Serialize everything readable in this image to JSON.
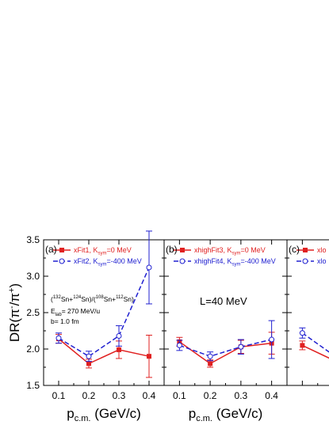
{
  "colors": {
    "red": "#e02020",
    "blue": "#2020d0",
    "axis": "#000000"
  },
  "ylabel_parts": {
    "main": "DR(π",
    "sup1": "-",
    "mid": "/π",
    "sup2": "+",
    "end": ")"
  },
  "xlabel_parts": {
    "p": "p",
    "sub": "c.m.",
    "rest": " (GeV/c)"
  },
  "chart_data": [
    {
      "type": "line",
      "panel_label": "(a)",
      "x": [
        0.1,
        0.2,
        0.3,
        0.4
      ],
      "xticks": [
        "0.1",
        "0.2",
        "0.3",
        "0.4"
      ],
      "xlim": [
        0.05,
        0.45
      ],
      "ylim": [
        1.5,
        3.5
      ],
      "yticks": [
        "1.5",
        "2.0",
        "2.5",
        "3.0",
        "3.5"
      ],
      "series": [
        {
          "name": "xFit1, K",
          "name_sub": "sym",
          "name_end": "=0 MeV",
          "color": "#e02020",
          "marker": "filled-square",
          "dash": "solid",
          "values": [
            2.14,
            1.8,
            1.99,
            1.9
          ],
          "errors": [
            0.06,
            0.06,
            0.12,
            0.29
          ]
        },
        {
          "name": "xFit2, K",
          "name_sub": "sym",
          "name_end": "=-400 MeV",
          "color": "#2020d0",
          "marker": "open-circle",
          "dash": "dashed",
          "values": [
            2.15,
            1.9,
            2.18,
            3.12
          ],
          "errors": [
            0.07,
            0.07,
            0.14,
            0.5
          ]
        }
      ],
      "annotations": {
        "reaction": {
          "o1": "(",
          "s1": "132",
          "t1": "Sn+",
          "s2": "124",
          "t2": "Sn)/(",
          "s3": "108",
          "t3": "Sn+",
          "s4": "112",
          "t4": "Sn)"
        },
        "energy": {
          "e": "E",
          "sub": "lab",
          "rest": "= 270 MeV/u"
        },
        "impact": "b= 1.0 fm"
      }
    },
    {
      "type": "line",
      "panel_label": "(b)",
      "x": [
        0.1,
        0.2,
        0.3,
        0.4
      ],
      "xticks": [
        "0.1",
        "0.2",
        "0.3",
        "0.4"
      ],
      "xlim": [
        0.05,
        0.45
      ],
      "ylim": [
        1.5,
        3.5
      ],
      "series": [
        {
          "name": "xhighFit3, K",
          "name_sub": "sym",
          "name_end": "=0 MeV",
          "color": "#e02020",
          "marker": "filled-square",
          "dash": "solid",
          "values": [
            2.1,
            1.8,
            2.03,
            2.08
          ],
          "errors": [
            0.06,
            0.05,
            0.09,
            0.15
          ]
        },
        {
          "name": "xhighFit4, K",
          "name_sub": "sym",
          "name_end": "=-400 MeV",
          "color": "#2020d0",
          "marker": "open-circle",
          "dash": "dashed",
          "values": [
            2.05,
            1.9,
            2.03,
            2.13
          ],
          "errors": [
            0.07,
            0.06,
            0.1,
            0.26
          ]
        }
      ],
      "annotations": {
        "text": "L=40 MeV"
      }
    },
    {
      "type": "line",
      "panel_label": "(c)",
      "x": [
        0.1,
        0.2
      ],
      "xlim": [
        0.05,
        0.45
      ],
      "ylim": [
        1.5,
        3.5
      ],
      "series": [
        {
          "name": "xlo",
          "color": "#e02020",
          "marker": "filled-square",
          "dash": "solid",
          "values": [
            2.05,
            1.85
          ],
          "errors": [
            0.06,
            0.06
          ]
        },
        {
          "name": "xlo",
          "color": "#2020d0",
          "marker": "open-circle",
          "dash": "dashed",
          "values": [
            2.22,
            1.92
          ],
          "errors": [
            0.07,
            0.07
          ]
        }
      ]
    }
  ]
}
